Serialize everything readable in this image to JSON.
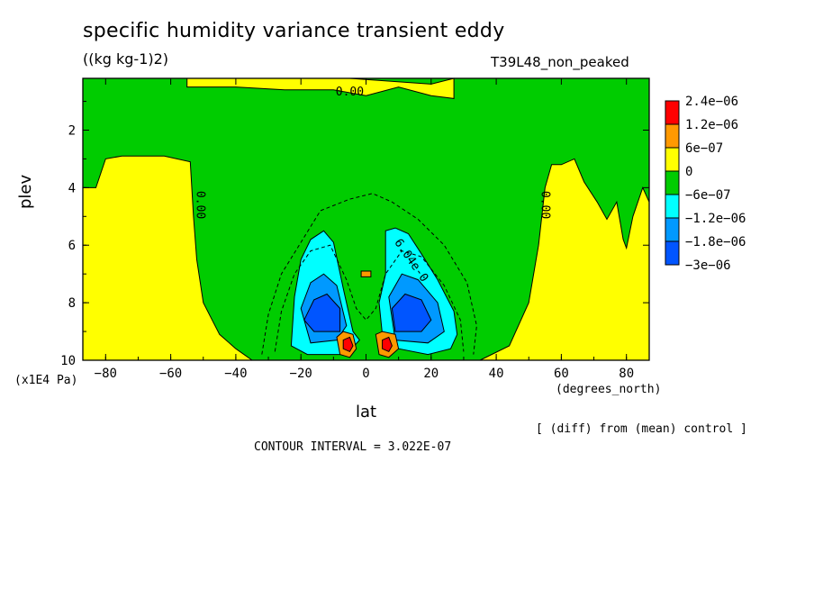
{
  "header": {
    "title": "specific humidity variance transient eddy",
    "units": "((kg kg-1)2)",
    "run_name": "T39L48_non_peaked"
  },
  "footer": {
    "diff_note": "[ (diff) from (mean) control ]",
    "contour_interval": "CONTOUR INTERVAL = 3.022E-07"
  },
  "colors": {
    "zero_band": "#00cc00",
    "pos_weak": "#ffff00",
    "pos_mid": "#ff9900",
    "pos_strong": "#ff0000",
    "neg_weak": "#00ffff",
    "neg_mid": "#0099ff",
    "neg_strong": "#0055ff"
  },
  "chart_data": {
    "type": "heatmap",
    "xlabel": "lat",
    "ylabel": "plev",
    "x_units": "(degrees_north)",
    "y_units": "(x1E4 Pa)",
    "xlim": [
      -87,
      87
    ],
    "ylim": [
      10,
      0.2
    ],
    "x_ticks": [
      -80,
      -60,
      -40,
      -20,
      0,
      20,
      40,
      60,
      80
    ],
    "y_ticks": [
      2,
      4,
      6,
      8,
      10
    ],
    "contour_labels": [
      {
        "text": "0.00",
        "lat": -5,
        "plev": 0.8
      },
      {
        "text": "0.00",
        "lat": -52,
        "plev": 4.6
      },
      {
        "text": "0.00",
        "lat": 54,
        "plev": 4.6
      },
      {
        "text": "6.04e-0",
        "lat": 13,
        "plev": 6.6
      }
    ],
    "legend": {
      "entries": [
        {
          "label": "2.4e-06",
          "color": "#ff0000"
        },
        {
          "label": "1.2e-06",
          "color": "#ff9900"
        },
        {
          "label": "6e-07",
          "color": "#ffff00"
        },
        {
          "label": "0",
          "color": "#00cc00"
        },
        {
          "label": "-6e-07",
          "color": "#00ffff"
        },
        {
          "label": "-1.2e-06",
          "color": "#0099ff"
        },
        {
          "label": "-1.8e-06",
          "color": "#0055ff"
        },
        {
          "label": "-3e-06",
          "color": "#0055ff"
        }
      ]
    },
    "regions": [
      {
        "name": "background",
        "level": "0",
        "points": [
          [
            -87,
            0.2
          ],
          [
            87,
            0.2
          ],
          [
            87,
            10
          ],
          [
            -87,
            10
          ]
        ]
      },
      {
        "name": "south-positive",
        "level": "6e-07",
        "points": [
          [
            -87,
            10
          ],
          [
            -87,
            4
          ],
          [
            -83,
            4
          ],
          [
            -80,
            3
          ],
          [
            -75,
            2.9
          ],
          [
            -62,
            2.9
          ],
          [
            -54,
            3.1
          ],
          [
            -53,
            5
          ],
          [
            -52,
            6.5
          ],
          [
            -50,
            8
          ],
          [
            -45,
            9.1
          ],
          [
            -40,
            9.6
          ],
          [
            -35,
            10
          ]
        ]
      },
      {
        "name": "north-positive",
        "level": "6e-07",
        "points": [
          [
            35,
            10
          ],
          [
            44,
            9.5
          ],
          [
            50,
            8
          ],
          [
            53,
            6
          ],
          [
            55,
            4
          ],
          [
            57,
            3.2
          ],
          [
            60,
            3.2
          ],
          [
            64,
            3
          ],
          [
            67,
            3.8
          ],
          [
            71,
            4.5
          ],
          [
            74,
            5.1
          ],
          [
            77,
            4.5
          ],
          [
            79,
            5.8
          ],
          [
            80,
            6.1
          ],
          [
            82,
            5
          ],
          [
            85,
            4
          ],
          [
            87,
            4.5
          ],
          [
            87,
            10
          ]
        ]
      },
      {
        "name": "top-positive",
        "level": "6e-07",
        "points": [
          [
            -55,
            0.2
          ],
          [
            -5,
            0.2
          ],
          [
            20,
            0.4
          ],
          [
            27,
            0.2
          ],
          [
            27,
            0.9
          ],
          [
            20,
            0.8
          ],
          [
            10,
            0.5
          ],
          [
            0,
            0.8
          ],
          [
            -10,
            0.6
          ],
          [
            -25,
            0.6
          ],
          [
            -40,
            0.5
          ],
          [
            -55,
            0.5
          ]
        ]
      },
      {
        "name": "south-negative-1",
        "level": "-6e-07",
        "points": [
          [
            -22,
            7.8
          ],
          [
            -20,
            6.5
          ],
          [
            -17,
            5.8
          ],
          [
            -13,
            5.5
          ],
          [
            -10,
            5.9
          ],
          [
            -7,
            7.5
          ],
          [
            -4,
            9
          ],
          [
            -2,
            9.3
          ],
          [
            -6,
            9.8
          ],
          [
            -18,
            9.8
          ],
          [
            -23,
            9.5
          ]
        ]
      },
      {
        "name": "south-negative-2",
        "level": "-1.2e-06",
        "points": [
          [
            -20,
            8.2
          ],
          [
            -17,
            7.3
          ],
          [
            -13,
            7
          ],
          [
            -9,
            7.4
          ],
          [
            -6,
            8.8
          ],
          [
            -9,
            9.3
          ],
          [
            -17,
            9.4
          ]
        ]
      },
      {
        "name": "south-negative-3",
        "level": "-1.8e-06",
        "points": [
          [
            -19,
            8.6
          ],
          [
            -16,
            7.9
          ],
          [
            -12,
            7.7
          ],
          [
            -8,
            8.2
          ],
          [
            -8,
            9
          ],
          [
            -16,
            9
          ]
        ]
      },
      {
        "name": "north-negative-1",
        "level": "-6e-07",
        "points": [
          [
            6,
            7
          ],
          [
            6,
            5.5
          ],
          [
            9,
            5.4
          ],
          [
            13,
            5.6
          ],
          [
            17,
            6.3
          ],
          [
            22,
            7.2
          ],
          [
            27,
            8.3
          ],
          [
            28,
            9.1
          ],
          [
            26,
            9.6
          ],
          [
            19,
            9.8
          ],
          [
            10,
            9.6
          ],
          [
            5,
            9.1
          ],
          [
            4,
            8
          ]
        ]
      },
      {
        "name": "north-negative-2",
        "level": "-1.2e-06",
        "points": [
          [
            7,
            7.8
          ],
          [
            11,
            7
          ],
          [
            16,
            7.2
          ],
          [
            22,
            8
          ],
          [
            24,
            9
          ],
          [
            19,
            9.4
          ],
          [
            9,
            9.3
          ]
        ]
      },
      {
        "name": "north-negative-3",
        "level": "-1.8e-06",
        "points": [
          [
            8,
            8.2
          ],
          [
            12,
            7.7
          ],
          [
            17,
            7.9
          ],
          [
            20,
            8.6
          ],
          [
            17,
            9
          ],
          [
            9,
            9
          ]
        ]
      },
      {
        "name": "south-core-positive",
        "level": "1.2e-06",
        "points": [
          [
            -9,
            9.2
          ],
          [
            -7,
            9
          ],
          [
            -4,
            9.1
          ],
          [
            -3,
            9.6
          ],
          [
            -5,
            9.9
          ],
          [
            -8,
            9.8
          ]
        ]
      },
      {
        "name": "south-core-strong",
        "level": "2.4e-06",
        "points": [
          [
            -7,
            9.3
          ],
          [
            -5,
            9.2
          ],
          [
            -4,
            9.5
          ],
          [
            -5,
            9.7
          ],
          [
            -7,
            9.6
          ]
        ]
      },
      {
        "name": "north-core-positive",
        "level": "1.2e-06",
        "points": [
          [
            3,
            9.1
          ],
          [
            5,
            9
          ],
          [
            9,
            9.1
          ],
          [
            10,
            9.6
          ],
          [
            7,
            9.9
          ],
          [
            4,
            9.8
          ]
        ]
      },
      {
        "name": "north-core-strong",
        "level": "2.4e-06",
        "points": [
          [
            5,
            9.3
          ],
          [
            7,
            9.2
          ],
          [
            8,
            9.5
          ],
          [
            7,
            9.7
          ],
          [
            5,
            9.6
          ]
        ]
      },
      {
        "name": "center-positive-box",
        "level": "1.2e-06",
        "points": [
          [
            -1.5,
            6.9
          ],
          [
            1.5,
            6.9
          ],
          [
            1.5,
            7.1
          ],
          [
            -1.5,
            7.1
          ]
        ]
      }
    ]
  }
}
